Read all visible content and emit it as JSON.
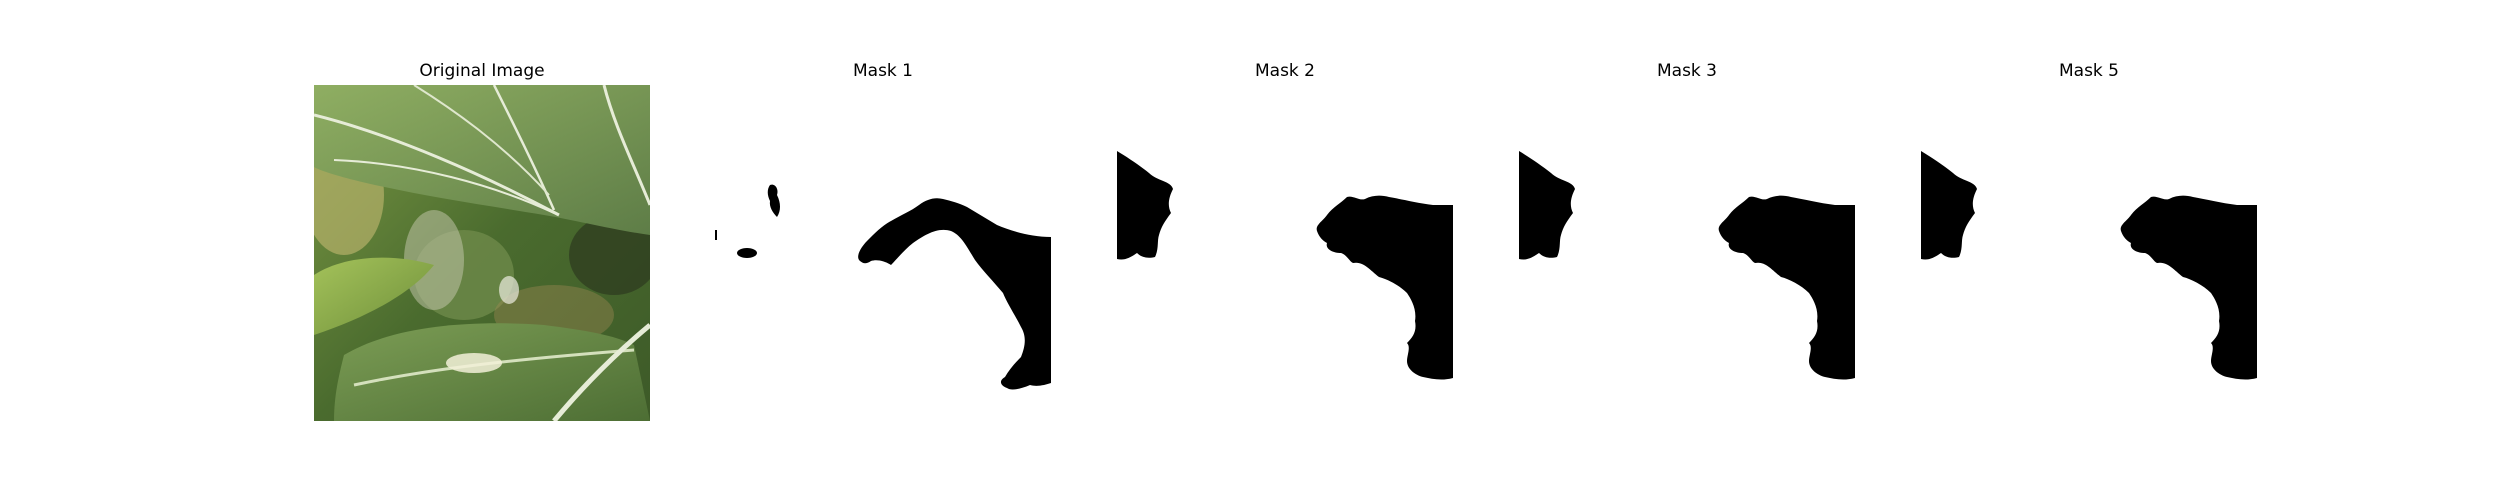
{
  "panels": [
    {
      "title": "Original Image",
      "kind": "photo"
    },
    {
      "title": "Mask 1",
      "kind": "mask"
    },
    {
      "title": "Mask 2",
      "kind": "mask"
    },
    {
      "title": "Mask 3",
      "kind": "mask"
    },
    {
      "title": "Mask 5",
      "kind": "mask"
    }
  ],
  "colors": {
    "background": "#ffffff",
    "mask_fill": "#000000",
    "leaf_dark": "#4f6f3a",
    "leaf_light": "#8fae55",
    "vein": "#e8eed8"
  }
}
